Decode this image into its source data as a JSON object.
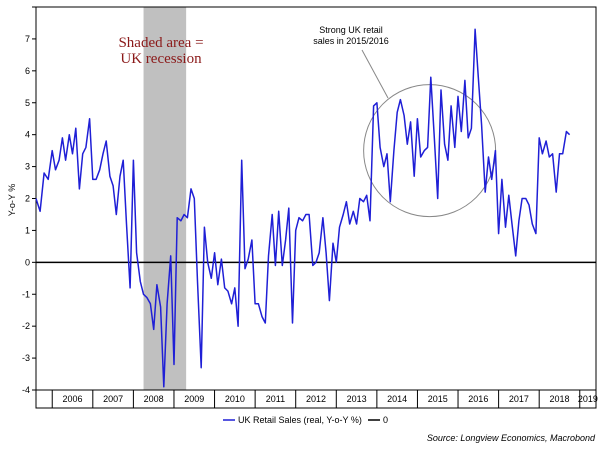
{
  "chart_data": {
    "type": "line",
    "ylabel": "Y-o-Y %",
    "ylim": [
      -4,
      8
    ],
    "yticks": [
      "-4",
      "-3",
      "-2",
      "-1",
      "0",
      "1",
      "2",
      "3",
      "4",
      "5",
      "6",
      "7",
      "8"
    ],
    "xlim": [
      2005.6,
      2019.4
    ],
    "year_labels": [
      "2006",
      "2007",
      "2008",
      "2009",
      "2010",
      "2011",
      "2012",
      "2013",
      "2014",
      "2015",
      "2016",
      "2017",
      "2018",
      "2019"
    ],
    "recession": {
      "start": 2008.25,
      "end": 2009.3,
      "label_line1": "Shaded area =",
      "label_line2": "UK recession"
    },
    "callout": {
      "line1": "Strong UK retail",
      "line2": "sales  in 2015/2016"
    },
    "zero_line": 0,
    "series": [
      {
        "name": "UK Retail Sales (real, Y-o-Y %)",
        "color": "#1f1fd6",
        "points": [
          [
            2005.6,
            2.0
          ],
          [
            2005.7,
            1.6
          ],
          [
            2005.8,
            2.8
          ],
          [
            2005.9,
            2.6
          ],
          [
            2006.0,
            3.5
          ],
          [
            2006.08,
            2.9
          ],
          [
            2006.17,
            3.2
          ],
          [
            2006.25,
            3.9
          ],
          [
            2006.33,
            3.2
          ],
          [
            2006.42,
            4.0
          ],
          [
            2006.5,
            3.4
          ],
          [
            2006.58,
            4.2
          ],
          [
            2006.67,
            2.3
          ],
          [
            2006.75,
            3.4
          ],
          [
            2006.83,
            3.6
          ],
          [
            2006.92,
            4.5
          ],
          [
            2007.0,
            2.6
          ],
          [
            2007.08,
            2.6
          ],
          [
            2007.17,
            2.9
          ],
          [
            2007.25,
            3.4
          ],
          [
            2007.33,
            3.8
          ],
          [
            2007.42,
            2.7
          ],
          [
            2007.5,
            2.4
          ],
          [
            2007.58,
            1.5
          ],
          [
            2007.67,
            2.7
          ],
          [
            2007.75,
            3.2
          ],
          [
            2007.83,
            1.2
          ],
          [
            2007.92,
            -0.8
          ],
          [
            2008.0,
            3.2
          ],
          [
            2008.08,
            0.3
          ],
          [
            2008.17,
            -0.6
          ],
          [
            2008.25,
            -1.0
          ],
          [
            2008.33,
            -1.1
          ],
          [
            2008.42,
            -1.3
          ],
          [
            2008.5,
            -2.1
          ],
          [
            2008.58,
            -0.7
          ],
          [
            2008.67,
            -1.4
          ],
          [
            2008.75,
            -3.9
          ],
          [
            2008.83,
            -1.3
          ],
          [
            2008.92,
            0.2
          ],
          [
            2009.0,
            -3.2
          ],
          [
            2009.08,
            1.4
          ],
          [
            2009.17,
            1.3
          ],
          [
            2009.25,
            1.5
          ],
          [
            2009.33,
            1.4
          ],
          [
            2009.42,
            2.3
          ],
          [
            2009.5,
            2.0
          ],
          [
            2009.58,
            -0.6
          ],
          [
            2009.67,
            -3.3
          ],
          [
            2009.75,
            1.1
          ],
          [
            2009.83,
            0.0
          ],
          [
            2009.92,
            -0.5
          ],
          [
            2010.0,
            0.3
          ],
          [
            2010.08,
            -0.7
          ],
          [
            2010.17,
            0.1
          ],
          [
            2010.25,
            -0.8
          ],
          [
            2010.33,
            -0.9
          ],
          [
            2010.42,
            -1.3
          ],
          [
            2010.5,
            -0.8
          ],
          [
            2010.58,
            -2.0
          ],
          [
            2010.67,
            3.2
          ],
          [
            2010.75,
            -0.2
          ],
          [
            2010.83,
            0.1
          ],
          [
            2010.92,
            0.7
          ],
          [
            2011.0,
            -1.3
          ],
          [
            2011.08,
            -1.3
          ],
          [
            2011.17,
            -1.7
          ],
          [
            2011.25,
            -1.9
          ],
          [
            2011.33,
            0.2
          ],
          [
            2011.42,
            1.5
          ],
          [
            2011.5,
            -0.1
          ],
          [
            2011.58,
            1.6
          ],
          [
            2011.67,
            -0.1
          ],
          [
            2011.75,
            0.7
          ],
          [
            2011.83,
            1.7
          ],
          [
            2011.92,
            -1.9
          ],
          [
            2012.0,
            1.0
          ],
          [
            2012.08,
            1.4
          ],
          [
            2012.17,
            1.3
          ],
          [
            2012.25,
            1.5
          ],
          [
            2012.33,
            1.5
          ],
          [
            2012.42,
            -0.1
          ],
          [
            2012.5,
            0.0
          ],
          [
            2012.58,
            0.3
          ],
          [
            2012.67,
            1.4
          ],
          [
            2012.75,
            0.3
          ],
          [
            2012.83,
            -1.2
          ],
          [
            2012.92,
            0.6
          ],
          [
            2013.0,
            0.0
          ],
          [
            2013.08,
            1.1
          ],
          [
            2013.17,
            1.5
          ],
          [
            2013.25,
            1.9
          ],
          [
            2013.33,
            1.2
          ],
          [
            2013.42,
            1.6
          ],
          [
            2013.5,
            1.2
          ],
          [
            2013.58,
            2.0
          ],
          [
            2013.67,
            1.9
          ],
          [
            2013.75,
            2.1
          ],
          [
            2013.83,
            1.3
          ],
          [
            2013.92,
            4.9
          ],
          [
            2014.0,
            5.0
          ],
          [
            2014.08,
            3.6
          ],
          [
            2014.17,
            3.0
          ],
          [
            2014.25,
            3.4
          ],
          [
            2014.33,
            1.9
          ],
          [
            2014.42,
            3.5
          ],
          [
            2014.5,
            4.7
          ],
          [
            2014.58,
            5.1
          ],
          [
            2014.67,
            4.6
          ],
          [
            2014.75,
            3.7
          ],
          [
            2014.83,
            4.4
          ],
          [
            2014.92,
            2.7
          ],
          [
            2015.0,
            4.5
          ],
          [
            2015.08,
            3.3
          ],
          [
            2015.17,
            3.5
          ],
          [
            2015.25,
            3.6
          ],
          [
            2015.33,
            5.8
          ],
          [
            2015.42,
            3.8
          ],
          [
            2015.5,
            2.0
          ],
          [
            2015.58,
            5.4
          ],
          [
            2015.67,
            3.7
          ],
          [
            2015.75,
            3.2
          ],
          [
            2015.83,
            4.9
          ],
          [
            2015.92,
            3.6
          ],
          [
            2016.0,
            5.2
          ],
          [
            2016.08,
            4.1
          ],
          [
            2016.17,
            5.7
          ],
          [
            2016.25,
            3.9
          ],
          [
            2016.33,
            4.2
          ],
          [
            2016.42,
            7.3
          ],
          [
            2016.5,
            5.8
          ],
          [
            2016.58,
            4.3
          ],
          [
            2016.67,
            2.2
          ],
          [
            2016.75,
            3.3
          ],
          [
            2016.83,
            2.6
          ],
          [
            2016.92,
            3.5
          ],
          [
            2017.0,
            0.9
          ],
          [
            2017.08,
            2.6
          ],
          [
            2017.17,
            1.1
          ],
          [
            2017.25,
            2.1
          ],
          [
            2017.33,
            1.2
          ],
          [
            2017.42,
            0.2
          ],
          [
            2017.5,
            1.3
          ],
          [
            2017.58,
            2.0
          ],
          [
            2017.67,
            2.0
          ],
          [
            2017.75,
            1.8
          ],
          [
            2017.83,
            1.2
          ],
          [
            2017.92,
            0.9
          ],
          [
            2018.0,
            3.9
          ],
          [
            2018.08,
            3.4
          ],
          [
            2018.17,
            3.8
          ],
          [
            2018.25,
            3.3
          ],
          [
            2018.33,
            3.4
          ],
          [
            2018.42,
            2.2
          ],
          [
            2018.5,
            3.4
          ],
          [
            2018.58,
            3.4
          ],
          [
            2018.67,
            4.1
          ],
          [
            2018.75,
            4.0
          ]
        ]
      },
      {
        "name": "0",
        "color": "#000000"
      }
    ],
    "source": "Source: Longview Economics, Macrobond"
  }
}
